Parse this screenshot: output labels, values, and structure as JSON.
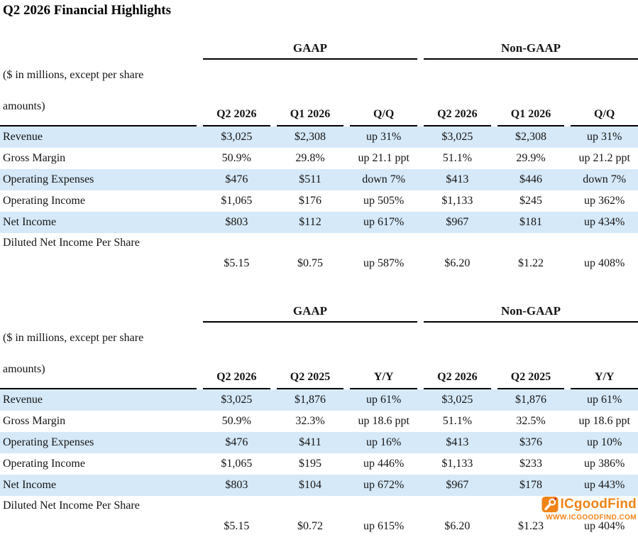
{
  "page": {
    "title": "Q2 2026 Financial Highlights"
  },
  "tables": [
    {
      "name": "quarter-over-quarter",
      "group_headers": [
        "GAAP",
        "Non-GAAP"
      ],
      "note_line1": "($ in millions, except per share",
      "note_line2": "amounts)",
      "columns": [
        "Q2 2026",
        "Q1 2026",
        "Q/Q",
        "Q2 2026",
        "Q1 2026",
        "Q/Q"
      ],
      "rows": [
        {
          "label": "Revenue",
          "values": [
            "$3,025",
            "$2,308",
            "up 31%",
            "$3,025",
            "$2,308",
            "up 31%"
          ]
        },
        {
          "label": "Gross Margin",
          "values": [
            "50.9%",
            "29.8%",
            "up 21.1 ppt",
            "51.1%",
            "29.9%",
            "up 21.2 ppt"
          ]
        },
        {
          "label": "Operating Expenses",
          "values": [
            "$476",
            "$511",
            "down 7%",
            "$413",
            "$446",
            "down 7%"
          ]
        },
        {
          "label": "Operating Income",
          "values": [
            "$1,065",
            "$176",
            "up 505%",
            "$1,133",
            "$245",
            "up 362%"
          ]
        },
        {
          "label": "Net Income",
          "values": [
            "$803",
            "$112",
            "up 617%",
            "$967",
            "$181",
            "up 434%"
          ]
        },
        {
          "label": "Diluted Net Income Per Share",
          "wrapped": true,
          "values": [
            "$5.15",
            "$0.75",
            "up 587%",
            "$6.20",
            "$1.22",
            "up 408%"
          ]
        }
      ]
    },
    {
      "name": "year-over-year",
      "group_headers": [
        "GAAP",
        "Non-GAAP"
      ],
      "note_line1": "($ in millions, except per share",
      "note_line2": "amounts)",
      "columns": [
        "Q2 2026",
        "Q2 2025",
        "Y/Y",
        "Q2 2026",
        "Q2 2025",
        "Y/Y"
      ],
      "rows": [
        {
          "label": "Revenue",
          "values": [
            "$3,025",
            "$1,876",
            "up 61%",
            "$3,025",
            "$1,876",
            "up 61%"
          ]
        },
        {
          "label": "Gross Margin",
          "values": [
            "50.9%",
            "32.3%",
            "up 18.6 ppt",
            "51.1%",
            "32.5%",
            "up 18.6 ppt"
          ]
        },
        {
          "label": "Operating Expenses",
          "values": [
            "$476",
            "$411",
            "up 16%",
            "$413",
            "$376",
            "up 10%"
          ]
        },
        {
          "label": "Operating Income",
          "values": [
            "$1,065",
            "$195",
            "up 446%",
            "$1,133",
            "$233",
            "up 386%"
          ]
        },
        {
          "label": "Net Income",
          "values": [
            "$803",
            "$104",
            "up 672%",
            "$967",
            "$178",
            "up 443%"
          ]
        },
        {
          "label": "Diluted Net Income Per Share",
          "wrapped": true,
          "values": [
            "$5.15",
            "$0.72",
            "up 615%",
            "$6.20",
            "$1.23",
            "up 404%"
          ]
        }
      ]
    }
  ],
  "watermark": {
    "name": "ICgoodFind",
    "url": "WWW.ICGOODFIND.COM",
    "icon": "magnifier-wrench-icon"
  },
  "colors": {
    "row_stripe": "#d6e9f8",
    "table_line": "#000000",
    "watermark_orange": "#f08418",
    "text": "#141414"
  }
}
